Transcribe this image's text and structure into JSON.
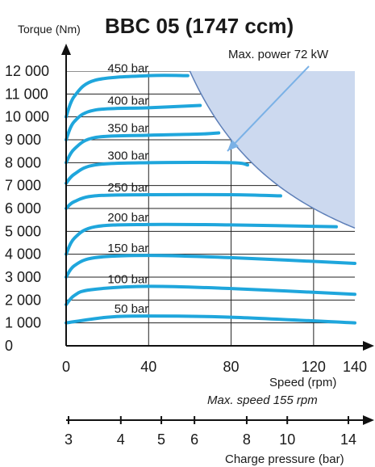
{
  "chart_data": {
    "type": "line",
    "title": "BBC 05 (1747 ccm)",
    "ylabel": "Torque (Nm)",
    "xlabel": "Speed (rpm)",
    "x_note": "Max. speed 155 rpm",
    "power_label": "Max. power 72 kW",
    "xlim": [
      0,
      140
    ],
    "ylim": [
      0,
      12000
    ],
    "x_ticks": [
      0,
      40,
      80,
      120,
      140
    ],
    "x_tick_labels": [
      "0",
      "40",
      "80",
      "120",
      "140"
    ],
    "y_ticks": [
      0,
      1000,
      2000,
      3000,
      4000,
      5000,
      6000,
      7000,
      8000,
      9000,
      10000,
      11000,
      12000
    ],
    "y_tick_labels": [
      "0",
      "1 000",
      "2 000",
      "3 000",
      "4 000",
      "5 000",
      "6 000",
      "7 000",
      "8 000",
      "9 000",
      "10 000",
      "11 000",
      "12 000"
    ],
    "secondary_axis": {
      "label": "Charge pressure (bar)",
      "ticks": [
        "3",
        "4",
        "5",
        "6",
        "8",
        "10",
        "14"
      ]
    },
    "series": [
      {
        "name": "50 bar",
        "points": [
          [
            0,
            1000
          ],
          [
            20,
            1250
          ],
          [
            40,
            1300
          ],
          [
            80,
            1250
          ],
          [
            140,
            1000
          ]
        ]
      },
      {
        "name": "100 bar",
        "points": [
          [
            0,
            1800
          ],
          [
            4,
            2200
          ],
          [
            12,
            2450
          ],
          [
            40,
            2600
          ],
          [
            80,
            2500
          ],
          [
            140,
            2250
          ]
        ]
      },
      {
        "name": "150 bar",
        "points": [
          [
            0,
            3000
          ],
          [
            4,
            3500
          ],
          [
            14,
            3850
          ],
          [
            40,
            3950
          ],
          [
            80,
            3850
          ],
          [
            140,
            3600
          ]
        ]
      },
      {
        "name": "200 bar",
        "points": [
          [
            0,
            4000
          ],
          [
            4,
            4700
          ],
          [
            14,
            5200
          ],
          [
            40,
            5300
          ],
          [
            80,
            5280
          ],
          [
            131,
            5200
          ]
        ]
      },
      {
        "name": "250 bar",
        "points": [
          [
            0,
            6000
          ],
          [
            4,
            6300
          ],
          [
            14,
            6550
          ],
          [
            40,
            6600
          ],
          [
            80,
            6600
          ],
          [
            104,
            6550
          ]
        ]
      },
      {
        "name": "300 bar",
        "points": [
          [
            0,
            7100
          ],
          [
            4,
            7500
          ],
          [
            14,
            7900
          ],
          [
            40,
            8000
          ],
          [
            80,
            8000
          ],
          [
            88,
            7900
          ]
        ]
      },
      {
        "name": "350 bar",
        "points": [
          [
            0,
            8000
          ],
          [
            4,
            8600
          ],
          [
            14,
            9100
          ],
          [
            40,
            9200
          ],
          [
            65,
            9250
          ],
          [
            74,
            9300
          ]
        ]
      },
      {
        "name": "400 bar",
        "points": [
          [
            0,
            9000
          ],
          [
            4,
            9800
          ],
          [
            14,
            10300
          ],
          [
            40,
            10400
          ],
          [
            65,
            10500
          ]
        ]
      },
      {
        "name": "450 bar",
        "points": [
          [
            0,
            10000
          ],
          [
            4,
            10900
          ],
          [
            14,
            11600
          ],
          [
            40,
            11800
          ],
          [
            59,
            11800
          ]
        ]
      }
    ],
    "grid": true,
    "fill_color": "#ccd9ef",
    "curve_color": "#1fa6dc",
    "power_curve_color": "#5d7fb8",
    "arrow_color": "#7ab1e6"
  }
}
